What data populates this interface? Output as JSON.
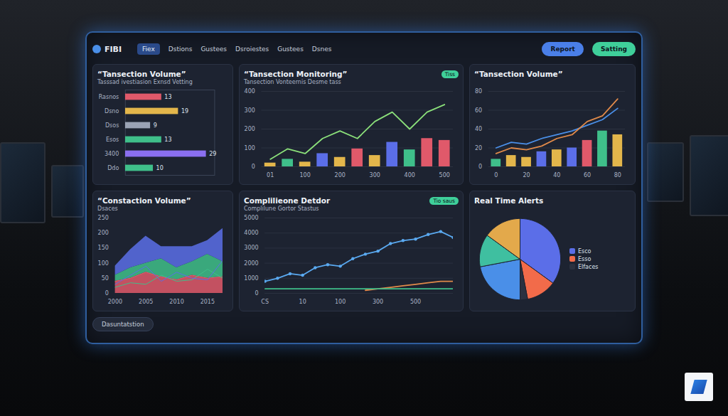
{
  "header": {
    "logo": "FIBI",
    "tab": "Fiex",
    "nav": [
      "Dstions",
      "Gustees",
      "Dsroiestes",
      "Gustees",
      "Dsnes"
    ],
    "buttons": [
      "Report",
      "Satting"
    ]
  },
  "footer": {
    "button": "Dasuntatstion"
  },
  "chart_data": [
    {
      "type": "bar",
      "orientation": "horizontal",
      "title": "“Tansection Volume”",
      "subtitle": "Tasssad ivestiasion Exnsd Vetting",
      "categories": [
        "Rasnos",
        "Dsno",
        "Dsos",
        "Esos",
        "3400",
        "Ddo"
      ],
      "values": [
        13,
        19,
        9,
        13,
        29,
        10
      ],
      "colors": [
        "#e0596a",
        "#e3b64b",
        "#9aa3b5",
        "#3fbf8a",
        "#8a6ff0",
        "#3fbf8a"
      ],
      "xlim": [
        0,
        32
      ],
      "tick_labels": "y",
      "data_labels": true
    },
    {
      "type": "bar",
      "title": "“Tansection Monitoring”",
      "subtitle": "Tansection Vonteernis Desme tass",
      "annotations": [
        "Tiss"
      ],
      "categories": [
        "01",
        null,
        "100",
        null,
        "200",
        null,
        "300",
        null,
        "400",
        null,
        "500"
      ],
      "series": [
        {
          "type": "bar",
          "colors": [
            "#e3b64b",
            "#3fbf8a",
            "#e3b64b",
            "#5b6ee8",
            "#e3b64b",
            "#e0596a",
            "#e3b64b",
            "#5b6ee8",
            "#3fbf8a",
            "#e0596a",
            "#e0596a"
          ],
          "values": [
            20,
            40,
            25,
            70,
            50,
            95,
            60,
            130,
            90,
            150,
            140
          ]
        },
        {
          "type": "line",
          "color": "#8be07a",
          "values": [
            40,
            95,
            70,
            150,
            190,
            150,
            240,
            290,
            200,
            290,
            330
          ]
        }
      ],
      "ylim": [
        0,
        400
      ],
      "yticks": [
        0,
        100,
        200,
        300,
        400
      ],
      "grid": true
    },
    {
      "type": "bar",
      "title": "“Tansection Volume”",
      "categories": [
        "0",
        null,
        "20",
        null,
        "40",
        null,
        "60",
        null,
        "80"
      ],
      "series": [
        {
          "type": "bar",
          "colors": [
            "#3fbf8a",
            "#e3b64b",
            "#e3b64b",
            "#5b6ee8",
            "#e3b64b",
            "#5b6ee8",
            "#e0596a",
            "#3fbf8a",
            "#e3b64b"
          ],
          "values": [
            8,
            12,
            10,
            16,
            18,
            20,
            28,
            38,
            34
          ]
        },
        {
          "type": "line",
          "color": "#4a8fe8",
          "values": [
            20,
            26,
            24,
            30,
            34,
            38,
            44,
            50,
            62
          ]
        },
        {
          "type": "line",
          "color": "#e08a4a",
          "values": [
            14,
            20,
            18,
            22,
            30,
            34,
            48,
            54,
            72
          ]
        }
      ],
      "ylim": [
        0,
        80
      ],
      "yticks": [
        0,
        20,
        40,
        60,
        80
      ],
      "grid": true
    },
    {
      "type": "area",
      "stacked": true,
      "title": "“Constaction Volume”",
      "subtitle": "Dsaces",
      "categories": [
        "2000",
        null,
        "2005",
        null,
        "2010",
        null,
        "2015",
        null
      ],
      "series": [
        {
          "color": "#e0596a",
          "values": [
            40,
            50,
            70,
            55,
            45,
            60,
            50,
            55
          ]
        },
        {
          "color": "#3fbf8a",
          "values": [
            20,
            35,
            30,
            60,
            40,
            45,
            80,
            50
          ]
        },
        {
          "color": "#5b6ee8",
          "values": [
            30,
            60,
            90,
            40,
            70,
            50,
            45,
            110
          ]
        }
      ],
      "ylim": [
        0,
        250
      ],
      "yticks": [
        0,
        50,
        100,
        150,
        200,
        250
      ]
    },
    {
      "type": "line",
      "title": "Complilieone Detdor",
      "subtitle": "Complilune Gortor Stastus",
      "annotations": [
        "Tio saus"
      ],
      "categories": [
        "CS",
        null,
        null,
        "10",
        null,
        null,
        "100",
        null,
        null,
        "300",
        null,
        null,
        "500",
        null,
        null,
        null
      ],
      "series": [
        {
          "color": "#5aa9f0",
          "marker": "circle",
          "values": [
            800,
            1000,
            1300,
            1200,
            1700,
            1900,
            1800,
            2300,
            2600,
            2800,
            3300,
            3500,
            3600,
            3900,
            4100,
            3700
          ]
        },
        {
          "color": "#e08a4a",
          "values": [
            null,
            null,
            null,
            null,
            null,
            null,
            null,
            null,
            200,
            300,
            400,
            500,
            600,
            700,
            800,
            800
          ]
        },
        {
          "color": "#3fbf8a",
          "values": [
            300,
            300,
            300,
            300,
            300,
            300,
            300,
            300,
            300,
            300,
            300,
            300,
            300,
            300,
            300,
            300
          ]
        }
      ],
      "ylim": [
        0,
        5000
      ],
      "yticks": [
        0,
        1000,
        2000,
        3000,
        4000,
        5000
      ],
      "grid": true
    },
    {
      "type": "pie",
      "title": "Real Time Alerts",
      "categories": [
        "Esco",
        "Esso",
        "Elfaces",
        null,
        null,
        null
      ],
      "values": [
        35,
        12,
        3,
        22,
        13,
        15
      ],
      "colors": [
        "#5b6ee8",
        "#f26b4a",
        "#2b3140",
        "#4a8fe8",
        "#3fbfa0",
        "#e3a94b"
      ],
      "legend": "right"
    }
  ]
}
